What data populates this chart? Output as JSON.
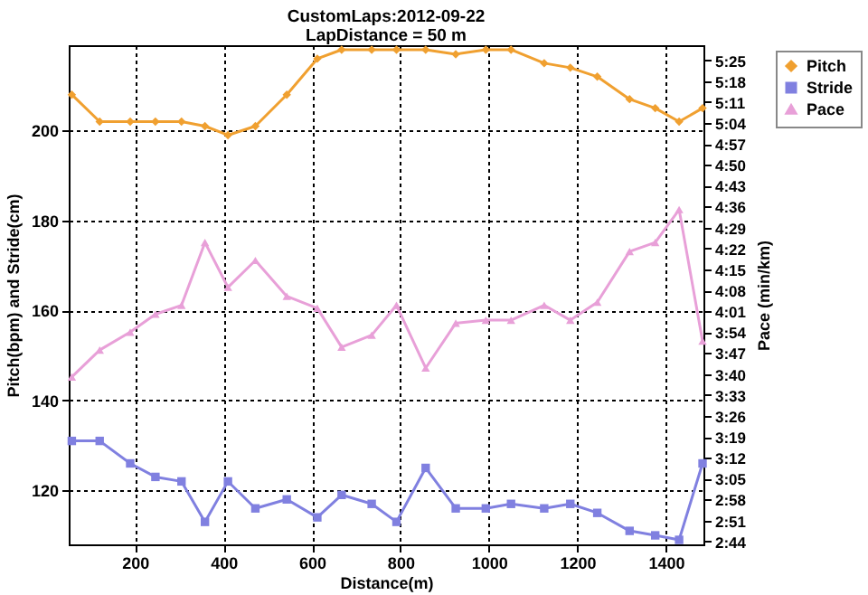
{
  "chart_data": {
    "type": "line",
    "title": "CustomLaps:2012-09-22",
    "subtitle": "LapDistance = 50 m",
    "xlabel": "Distance(m)",
    "ylabel": "Pitch(bpm) and Stride(cm)",
    "y2label": "Pace (min/km)",
    "x": [
      57,
      120,
      189,
      246,
      305,
      358,
      410,
      472,
      543,
      612,
      667,
      735,
      791,
      857,
      925,
      993,
      1050,
      1125,
      1184,
      1245,
      1318,
      1376,
      1430,
      1483
    ],
    "series": [
      {
        "name": "Pitch",
        "color": "#f0a030",
        "marker": "diamond",
        "values": [
          208,
          202,
          202,
          202,
          202,
          201,
          199,
          201,
          208,
          216,
          218,
          218,
          218,
          218,
          217,
          218,
          218,
          215,
          214,
          212,
          207,
          205,
          202,
          205
        ]
      },
      {
        "name": "Stride",
        "color": "#8080e0",
        "marker": "square",
        "values": [
          131,
          131,
          126,
          123,
          122,
          113,
          122,
          116,
          118,
          114,
          119,
          117,
          113,
          125,
          116,
          116,
          117,
          116,
          117,
          115,
          111,
          110,
          109,
          126
        ]
      },
      {
        "name": "Pace",
        "color": "#e8a0d8",
        "marker": "triangle",
        "axis": "y2",
        "values": [
          219,
          228,
          234,
          240,
          243,
          264,
          249,
          258,
          246,
          242,
          229,
          233,
          243,
          222,
          237,
          238,
          238,
          243,
          238,
          244,
          261,
          264,
          275,
          231
        ]
      }
    ],
    "xlim": [
      50,
      1485
    ],
    "xticks": [
      200,
      400,
      600,
      800,
      1000,
      1200,
      1400
    ],
    "ylim": [
      108,
      219
    ],
    "yticks": [
      120,
      140,
      160,
      180,
      200
    ],
    "y2lim": [
      163,
      330
    ],
    "y2ticks": [
      {
        "value": 164,
        "label": "2:44"
      },
      {
        "value": 171,
        "label": "2:51"
      },
      {
        "value": 178,
        "label": "2:58"
      },
      {
        "value": 185,
        "label": "3:05"
      },
      {
        "value": 192,
        "label": "3:12"
      },
      {
        "value": 199,
        "label": "3:19"
      },
      {
        "value": 206,
        "label": "3:26"
      },
      {
        "value": 213,
        "label": "3:33"
      },
      {
        "value": 220,
        "label": "3:40"
      },
      {
        "value": 227,
        "label": "3:47"
      },
      {
        "value": 234,
        "label": "3:54"
      },
      {
        "value": 241,
        "label": "4:01"
      },
      {
        "value": 248,
        "label": "4:08"
      },
      {
        "value": 255,
        "label": "4:15"
      },
      {
        "value": 262,
        "label": "4:22"
      },
      {
        "value": 269,
        "label": "4:29"
      },
      {
        "value": 276,
        "label": "4:36"
      },
      {
        "value": 283,
        "label": "4:43"
      },
      {
        "value": 290,
        "label": "4:50"
      },
      {
        "value": 297,
        "label": "4:57"
      },
      {
        "value": 304,
        "label": "5:04"
      },
      {
        "value": 311,
        "label": "5:11"
      },
      {
        "value": 318,
        "label": "5:18"
      },
      {
        "value": 325,
        "label": "5:25"
      }
    ],
    "grid": true,
    "legend": "right"
  }
}
